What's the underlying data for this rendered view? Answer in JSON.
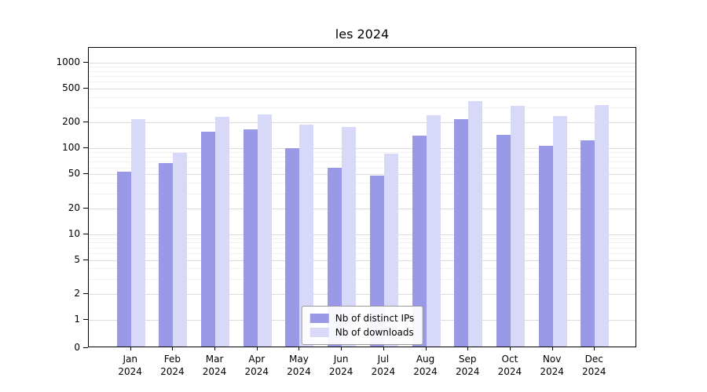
{
  "chart_data": {
    "type": "bar",
    "title": "les 2024",
    "x": {
      "months": [
        "Jan",
        "Feb",
        "Mar",
        "Apr",
        "May",
        "Jun",
        "Jul",
        "Aug",
        "Sep",
        "Oct",
        "Nov",
        "Dec"
      ],
      "year": "2024"
    },
    "y_axis": {
      "scale": "symlog",
      "ticks": [
        0,
        1,
        2,
        5,
        10,
        20,
        50,
        100,
        200,
        500,
        1000
      ],
      "minor_gridlines": [
        3,
        4,
        6,
        7,
        8,
        9,
        30,
        40,
        60,
        70,
        80,
        90,
        300,
        400,
        600,
        700,
        800,
        900
      ],
      "ylim": [
        0,
        1500
      ]
    },
    "series": [
      {
        "name": "Nb of distinct IPs",
        "color": "#9999e8",
        "values": [
          51,
          65,
          150,
          160,
          97,
          57,
          46,
          135,
          210,
          137,
          102,
          118
        ]
      },
      {
        "name": "Nb of downloads",
        "color": "#d8d8f8",
        "values": [
          210,
          85,
          225,
          240,
          180,
          172,
          84,
          235,
          340,
          300,
          230,
          310
        ]
      }
    ],
    "legend": {
      "position": "lower center"
    },
    "grid": "on"
  },
  "colors": {
    "grid_major": "#dcdcdc",
    "grid_minor": "#f1f1f1",
    "axis": "#000000",
    "background": "#ffffff"
  }
}
